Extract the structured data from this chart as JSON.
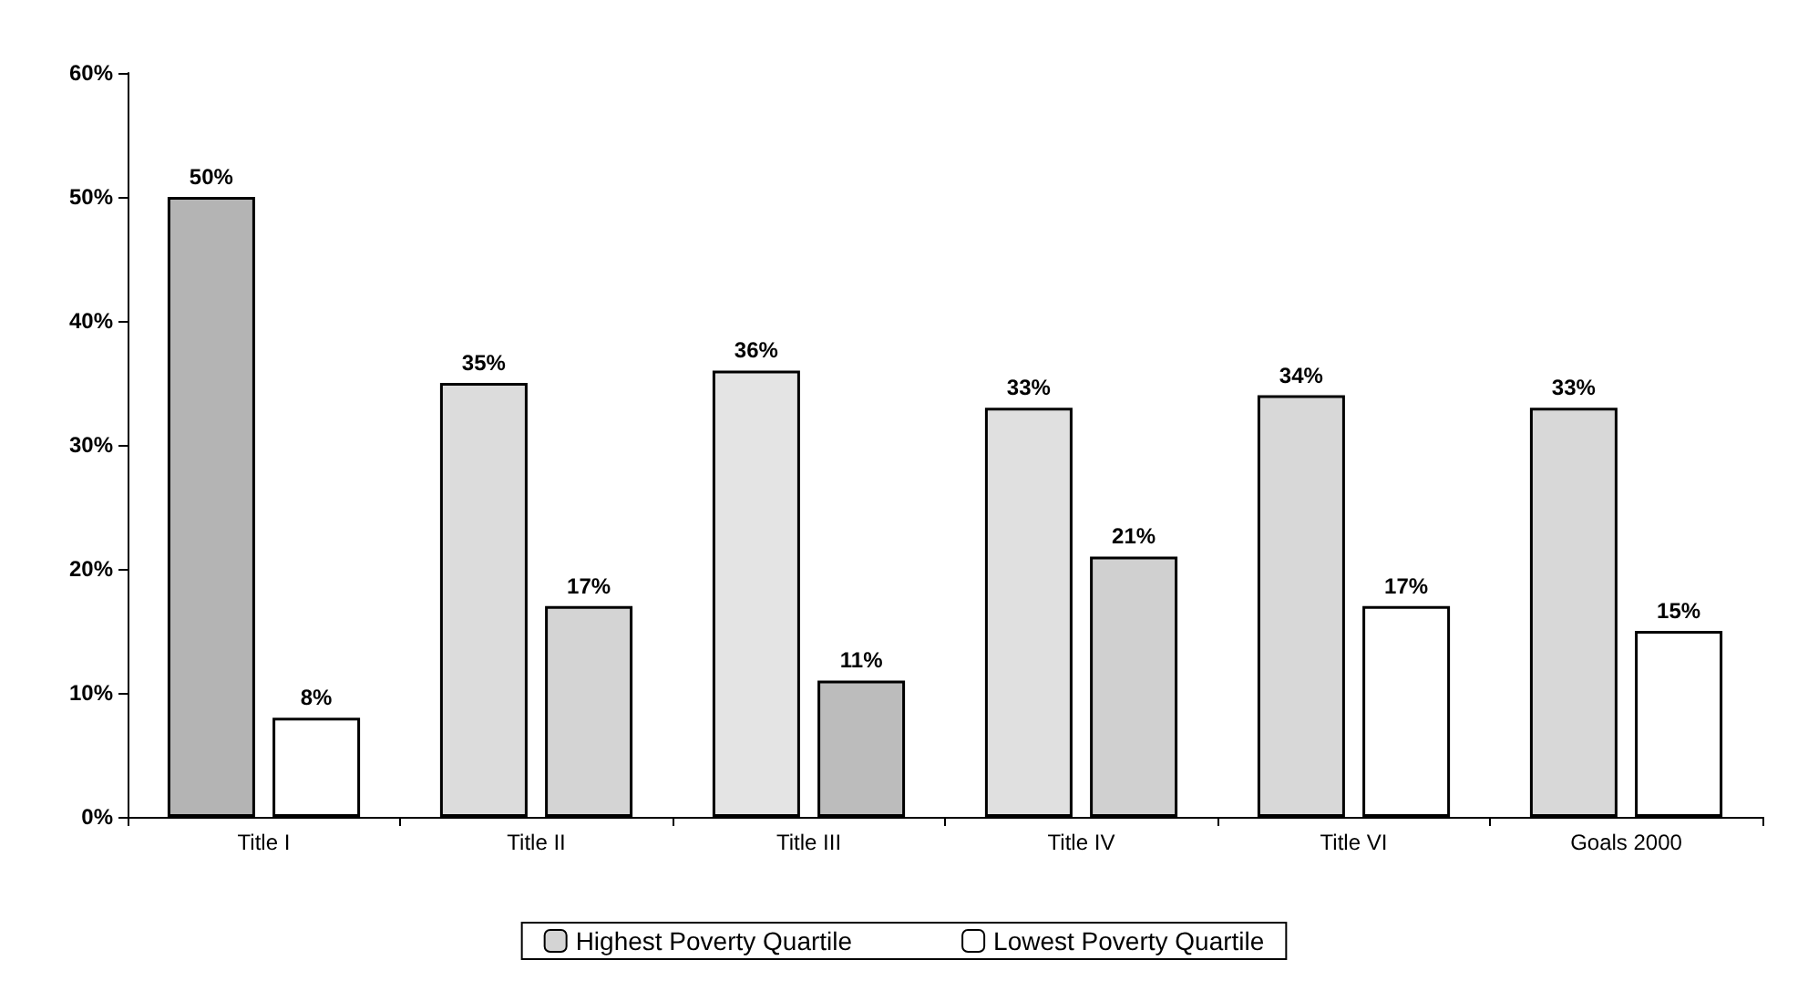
{
  "chart_data": {
    "type": "bar",
    "categories": [
      "Title I",
      "Title II",
      "Title III",
      "Title IV",
      "Title VI",
      "Goals 2000"
    ],
    "series": [
      {
        "name": "Highest Poverty Quartile",
        "color": "#d4d4d4",
        "colors": [
          "#b4b4b4",
          "#dcdcdc",
          "#e4e4e4",
          "#e0e0e0",
          "#d8d8d8",
          "#d8d8d8"
        ],
        "values": [
          50,
          35,
          36,
          33,
          34,
          33
        ],
        "value_labels": [
          "50%",
          "35%",
          "36%",
          "33%",
          "34%",
          "33%"
        ]
      },
      {
        "name": "Lowest Poverty Quartile",
        "color": "#ffffff",
        "colors": [
          "#ffffff",
          "#d4d4d4",
          "#bcbcbc",
          "#d0d0d0",
          "#ffffff",
          "#ffffff"
        ],
        "values": [
          8,
          17,
          11,
          21,
          17,
          15
        ],
        "value_labels": [
          "8%",
          "17%",
          "11%",
          "21%",
          "17%",
          "15%"
        ]
      }
    ],
    "ylim": [
      0,
      60
    ],
    "yticks": [
      {
        "value": 0,
        "label": "0%"
      },
      {
        "value": 10,
        "label": "10%"
      },
      {
        "value": 20,
        "label": "20%"
      },
      {
        "value": 30,
        "label": "30%"
      },
      {
        "value": 40,
        "label": "40%"
      },
      {
        "value": 50,
        "label": "50%"
      },
      {
        "value": 60,
        "label": "60%"
      }
    ],
    "grid": false,
    "legend": "bottom"
  }
}
